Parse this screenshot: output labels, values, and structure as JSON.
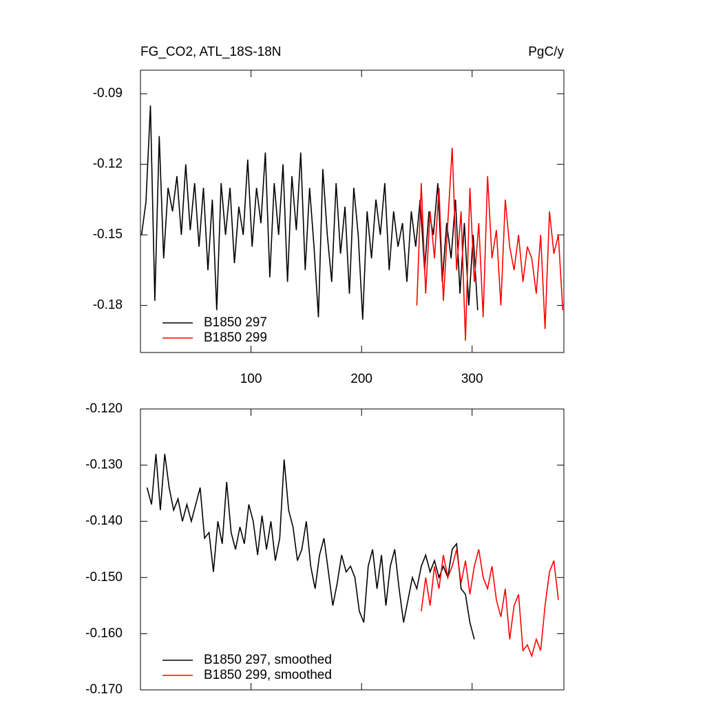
{
  "chart_data": [
    {
      "type": "line",
      "title": "FG_CO2, ATL_18S-18N",
      "units": "PgC/y",
      "xlim": [
        0,
        383
      ],
      "xticks": [
        100,
        200,
        300
      ],
      "show_xtick_labels": true,
      "ylim": [
        -0.2,
        -0.08
      ],
      "yticks": [
        -0.18,
        -0.15,
        -0.12,
        -0.09
      ],
      "legend": "lower left",
      "series": [
        {
          "name": "B1850 297",
          "color": "#000000",
          "x": [
            1,
            5,
            9,
            13,
            17,
            21,
            25,
            29,
            33,
            37,
            41,
            45,
            49,
            53,
            57,
            61,
            65,
            69,
            73,
            77,
            81,
            85,
            89,
            93,
            97,
            101,
            105,
            109,
            113,
            117,
            121,
            125,
            129,
            133,
            137,
            141,
            145,
            149,
            153,
            157,
            161,
            165,
            169,
            173,
            177,
            181,
            185,
            189,
            193,
            197,
            201,
            205,
            209,
            213,
            217,
            221,
            225,
            229,
            233,
            237,
            241,
            245,
            249,
            253,
            257,
            261,
            265,
            269,
            273,
            277,
            281,
            285,
            289,
            293,
            297,
            301,
            305
          ],
          "values": [
            -0.15,
            -0.136,
            -0.095,
            -0.178,
            -0.108,
            -0.16,
            -0.13,
            -0.14,
            -0.125,
            -0.15,
            -0.12,
            -0.148,
            -0.128,
            -0.155,
            -0.13,
            -0.165,
            -0.135,
            -0.182,
            -0.128,
            -0.15,
            -0.13,
            -0.162,
            -0.138,
            -0.15,
            -0.118,
            -0.155,
            -0.13,
            -0.145,
            -0.115,
            -0.168,
            -0.128,
            -0.15,
            -0.12,
            -0.17,
            -0.125,
            -0.148,
            -0.115,
            -0.165,
            -0.13,
            -0.155,
            -0.185,
            -0.122,
            -0.15,
            -0.17,
            -0.128,
            -0.158,
            -0.138,
            -0.175,
            -0.13,
            -0.15,
            -0.186,
            -0.14,
            -0.16,
            -0.135,
            -0.15,
            -0.128,
            -0.165,
            -0.14,
            -0.155,
            -0.145,
            -0.17,
            -0.14,
            -0.155,
            -0.135,
            -0.165,
            -0.14,
            -0.15,
            -0.128,
            -0.17,
            -0.145,
            -0.16,
            -0.135,
            -0.175,
            -0.145,
            -0.18,
            -0.15,
            -0.182
          ]
        },
        {
          "name": "B1850 299",
          "color": "#ff0000",
          "x": [
            250,
            254,
            258,
            262,
            266,
            270,
            274,
            278,
            282,
            286,
            290,
            294,
            298,
            302,
            306,
            310,
            314,
            318,
            322,
            326,
            330,
            334,
            338,
            342,
            346,
            350,
            354,
            358,
            362,
            366,
            370,
            374,
            378,
            382
          ],
          "values": [
            -0.18,
            -0.128,
            -0.175,
            -0.14,
            -0.16,
            -0.13,
            -0.178,
            -0.145,
            -0.113,
            -0.165,
            -0.14,
            -0.195,
            -0.13,
            -0.17,
            -0.145,
            -0.185,
            -0.125,
            -0.16,
            -0.148,
            -0.18,
            -0.135,
            -0.155,
            -0.165,
            -0.15,
            -0.17,
            -0.155,
            -0.16,
            -0.175,
            -0.15,
            -0.19,
            -0.14,
            -0.158,
            -0.15,
            -0.182
          ]
        }
      ]
    },
    {
      "type": "line",
      "xlim": [
        0,
        383
      ],
      "xticks": [
        100,
        200,
        300
      ],
      "show_xtick_labels": false,
      "ylim": [
        -0.17,
        -0.12
      ],
      "yticks": [
        {
          "value": -0.17,
          "label": "-0.170"
        },
        {
          "value": -0.16,
          "label": "-0.160"
        },
        {
          "value": -0.15,
          "label": "-0.150"
        },
        {
          "value": -0.14,
          "label": "-0.140"
        },
        {
          "value": -0.13,
          "label": "-0.130"
        },
        {
          "value": -0.12,
          "label": "-0.120"
        }
      ],
      "legend": "lower left",
      "series": [
        {
          "name": "B1850 297, smoothed",
          "color": "#000000",
          "x": [
            6,
            10,
            14,
            18,
            22,
            26,
            30,
            34,
            38,
            42,
            46,
            50,
            54,
            58,
            62,
            66,
            70,
            74,
            78,
            82,
            86,
            90,
            94,
            98,
            102,
            106,
            110,
            114,
            118,
            122,
            126,
            130,
            134,
            138,
            142,
            146,
            150,
            154,
            158,
            162,
            166,
            170,
            174,
            178,
            182,
            186,
            190,
            194,
            198,
            202,
            206,
            210,
            214,
            218,
            222,
            226,
            230,
            234,
            238,
            242,
            246,
            250,
            254,
            258,
            262,
            266,
            270,
            274,
            278,
            282,
            286,
            290,
            294,
            298,
            302
          ],
          "values": [
            -0.134,
            -0.137,
            -0.128,
            -0.138,
            -0.128,
            -0.134,
            -0.138,
            -0.136,
            -0.14,
            -0.137,
            -0.14,
            -0.137,
            -0.134,
            -0.143,
            -0.142,
            -0.149,
            -0.14,
            -0.144,
            -0.133,
            -0.142,
            -0.145,
            -0.141,
            -0.144,
            -0.137,
            -0.14,
            -0.146,
            -0.139,
            -0.145,
            -0.14,
            -0.147,
            -0.143,
            -0.129,
            -0.138,
            -0.141,
            -0.147,
            -0.145,
            -0.14,
            -0.148,
            -0.152,
            -0.146,
            -0.143,
            -0.149,
            -0.155,
            -0.151,
            -0.146,
            -0.149,
            -0.148,
            -0.15,
            -0.156,
            -0.158,
            -0.148,
            -0.145,
            -0.152,
            -0.146,
            -0.155,
            -0.148,
            -0.145,
            -0.152,
            -0.158,
            -0.154,
            -0.15,
            -0.152,
            -0.148,
            -0.146,
            -0.149,
            -0.147,
            -0.15,
            -0.148,
            -0.15,
            -0.145,
            -0.144,
            -0.152,
            -0.153,
            -0.158,
            -0.161
          ]
        },
        {
          "name": "B1850 299, smoothed",
          "color": "#ff0000",
          "x": [
            254,
            258,
            262,
            266,
            270,
            274,
            278,
            282,
            286,
            290,
            294,
            298,
            302,
            306,
            310,
            314,
            318,
            322,
            326,
            330,
            334,
            338,
            342,
            346,
            350,
            354,
            358,
            362,
            366,
            370,
            374,
            378
          ],
          "values": [
            -0.156,
            -0.15,
            -0.155,
            -0.148,
            -0.152,
            -0.146,
            -0.15,
            -0.148,
            -0.145,
            -0.151,
            -0.147,
            -0.153,
            -0.148,
            -0.145,
            -0.15,
            -0.152,
            -0.148,
            -0.154,
            -0.157,
            -0.152,
            -0.161,
            -0.155,
            -0.153,
            -0.163,
            -0.162,
            -0.164,
            -0.161,
            -0.163,
            -0.155,
            -0.149,
            -0.147,
            -0.154
          ]
        }
      ]
    }
  ]
}
